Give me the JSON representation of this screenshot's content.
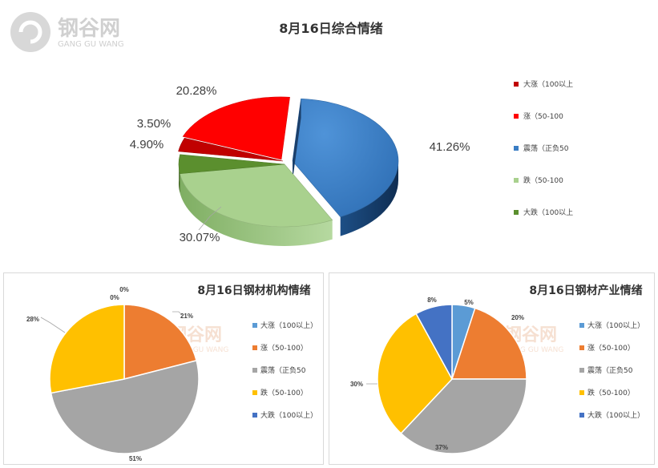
{
  "watermark": {
    "cn": "钢谷网",
    "en": "GANG GU WANG"
  },
  "chart_data": [
    {
      "type": "pie",
      "title": "8月16日综合情绪",
      "categories": [
        "大涨（100以上",
        "涨（50-100",
        "震荡（正负50",
        "跌（50-100",
        "大跌（100以上"
      ],
      "values": [
        3.5,
        20.28,
        41.26,
        30.07,
        4.9
      ],
      "labels": [
        "3.50%",
        "20.28%",
        "41.26%",
        "30.07%",
        "4.90%"
      ],
      "colors": [
        "#c00000",
        "#ff0000",
        "#3a7dc4",
        "#a9d18e",
        "#5b8f2e"
      ],
      "legend": "right",
      "style": "3d"
    },
    {
      "type": "pie",
      "title": "8月16日钢材机构情绪",
      "categories": [
        "大涨（100以上）",
        "涨（50-100）",
        "震荡（正负50",
        "跌（50-100）",
        "大跌（100以上）"
      ],
      "values": [
        0,
        21,
        51,
        28,
        0
      ],
      "labels": [
        "0%",
        "21%",
        "51%",
        "28%",
        "0%"
      ],
      "colors": [
        "#5b9bd5",
        "#ed7d31",
        "#a5a5a5",
        "#ffc000",
        "#4472c4"
      ],
      "legend": "right"
    },
    {
      "type": "pie",
      "title": "8月16日钢材产业情绪",
      "categories": [
        "大涨（100以上）",
        "涨（50-100）",
        "震荡（正负50",
        "跌（50-100）",
        "大跌（100以上）"
      ],
      "values": [
        5,
        20,
        37,
        30,
        8
      ],
      "labels": [
        "5%",
        "20%",
        "37%",
        "30%",
        "8%"
      ],
      "colors": [
        "#5b9bd5",
        "#ed7d31",
        "#a5a5a5",
        "#ffc000",
        "#4472c4"
      ],
      "legend": "right"
    }
  ]
}
